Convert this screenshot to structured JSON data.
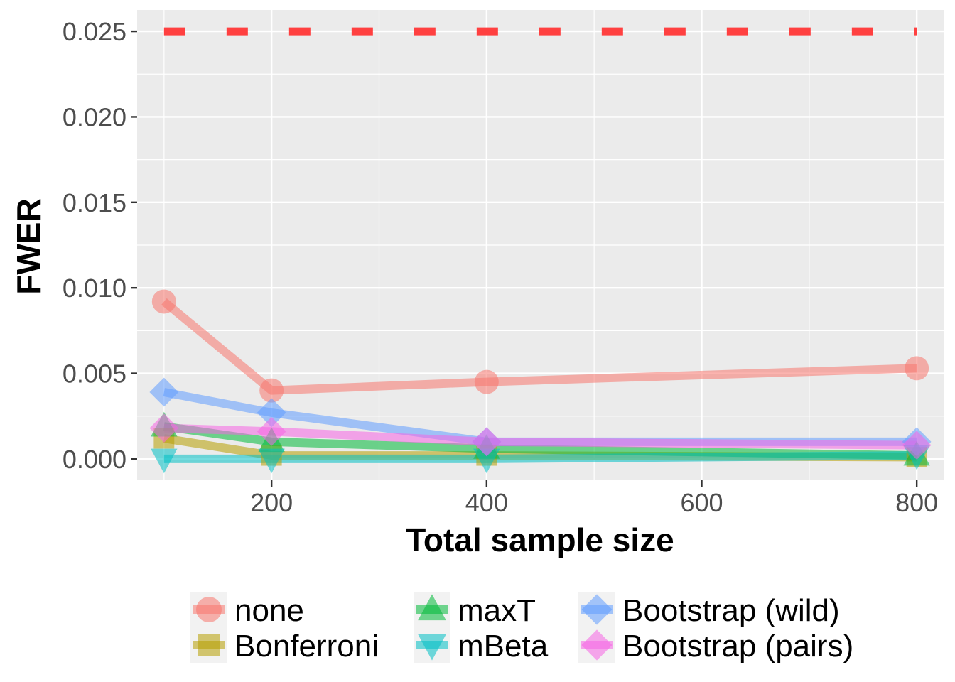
{
  "chart_data": {
    "type": "line",
    "title": "",
    "xlabel": "Total sample size",
    "ylabel": "FWER",
    "xlim": [
      75,
      825
    ],
    "ylim": [
      -0.00125,
      0.02625
    ],
    "x_ticks": [
      200,
      400,
      600,
      800
    ],
    "x_tick_labels": [
      "200",
      "400",
      "600",
      "800"
    ],
    "y_ticks": [
      0.0,
      0.005,
      0.01,
      0.015,
      0.02,
      0.025
    ],
    "y_tick_labels": [
      "0.000",
      "0.005",
      "0.010",
      "0.015",
      "0.020",
      "0.025"
    ],
    "x": [
      100,
      200,
      400,
      800
    ],
    "grid": true,
    "background": "#ebebeb",
    "legend_position": "bottom",
    "reference_line": {
      "y": 0.025,
      "color": "#ff4040",
      "style": "dashed"
    },
    "series": [
      {
        "name": "none",
        "color": "#f8766d",
        "marker": "circle",
        "values": [
          0.0092,
          0.004,
          0.0045,
          0.0053
        ]
      },
      {
        "name": "Bonferroni",
        "color": "#b79f00",
        "marker": "square",
        "values": [
          0.0012,
          0.0002,
          0.0002,
          0.0001
        ]
      },
      {
        "name": "maxT",
        "color": "#00ba38",
        "marker": "triangle-up",
        "values": [
          0.0019,
          0.001,
          0.0006,
          0.0002
        ]
      },
      {
        "name": "mBeta",
        "color": "#00bfc4",
        "marker": "triangle-down",
        "values": [
          0.0,
          0.0,
          0.0,
          0.0002
        ]
      },
      {
        "name": "Bootstrap (wild)",
        "color": "#619cff",
        "marker": "diamond",
        "values": [
          0.0039,
          0.0027,
          0.001,
          0.001
        ]
      },
      {
        "name": "Bootstrap (pairs)",
        "color": "#f564e3",
        "marker": "diamond",
        "values": [
          0.0018,
          0.0016,
          0.001,
          0.0008
        ]
      }
    ]
  }
}
